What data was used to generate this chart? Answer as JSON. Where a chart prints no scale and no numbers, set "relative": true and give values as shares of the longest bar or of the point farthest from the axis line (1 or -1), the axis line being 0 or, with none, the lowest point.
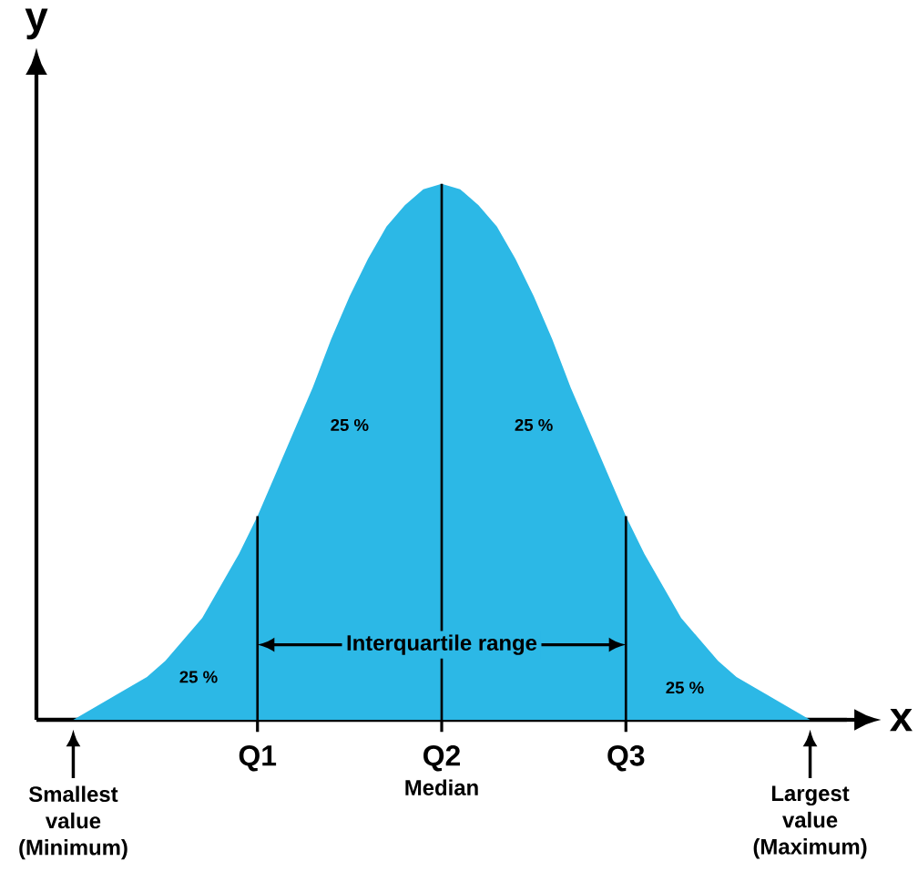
{
  "chart_data": {
    "type": "area",
    "relative": true,
    "color": "#2cb8e6",
    "xlabel": "x",
    "ylabel": "y",
    "categories": [
      null,
      null,
      null,
      null,
      null,
      null,
      null,
      null,
      null,
      null,
      "Q1",
      null,
      null,
      null,
      null,
      null,
      null,
      null,
      null,
      null,
      "Q2",
      null,
      null,
      null,
      null,
      null,
      null,
      null,
      null,
      null,
      "Q3",
      null,
      null,
      null,
      null,
      null,
      null,
      null,
      null,
      null,
      null
    ],
    "values": [
      0.0,
      0.02,
      0.04,
      0.06,
      0.08,
      0.11,
      0.15,
      0.19,
      0.25,
      0.31,
      0.38,
      0.46,
      0.54,
      0.62,
      0.71,
      0.79,
      0.86,
      0.92,
      0.96,
      0.99,
      1.0,
      0.99,
      0.96,
      0.92,
      0.86,
      0.79,
      0.71,
      0.62,
      0.54,
      0.46,
      0.38,
      0.31,
      0.25,
      0.19,
      0.15,
      0.11,
      0.08,
      0.06,
      0.04,
      0.02,
      0.0
    ],
    "ref_lines": [
      {
        "axis": "x",
        "value": "Q1"
      },
      {
        "axis": "x",
        "value": "Q2"
      },
      {
        "axis": "x",
        "value": "Q3"
      }
    ],
    "annotations": [
      "25 %",
      "25 %",
      "25 %",
      "25 %",
      "Interquartile range",
      "Median",
      "Smallest value (Minimum)",
      "Largest value (Maximum)"
    ]
  }
}
